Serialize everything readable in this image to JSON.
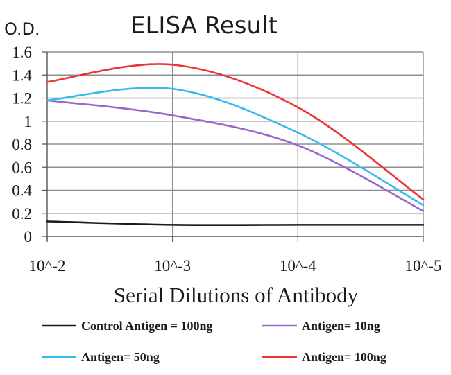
{
  "chart_data": {
    "type": "line",
    "title": "ELISA Result",
    "ylabel": "O.D.",
    "xlabel": "Serial Dilutions of Antibody",
    "categories": [
      "10^-2",
      "10^-3",
      "10^-4",
      "10^-5"
    ],
    "ylim": [
      0,
      1.6
    ],
    "yticks": [
      "0",
      "0.2",
      "0.4",
      "0.6",
      "0.8",
      "1",
      "1.2",
      "1.4",
      "1.6"
    ],
    "grid": true,
    "legend_position": "bottom",
    "series": [
      {
        "name": "Control Antigen = 100ng",
        "color": "#1a1a1a",
        "values": [
          0.13,
          0.1,
          0.1,
          0.1
        ]
      },
      {
        "name": "Antigen= 10ng",
        "color": "#9966cc",
        "values": [
          1.18,
          1.05,
          0.79,
          0.22
        ]
      },
      {
        "name": "Antigen= 50ng",
        "color": "#33bbee",
        "values": [
          1.18,
          1.28,
          0.9,
          0.27
        ]
      },
      {
        "name": "Antigen= 100ng",
        "color": "#ee3333",
        "values": [
          1.34,
          1.49,
          1.12,
          0.32
        ]
      }
    ]
  }
}
